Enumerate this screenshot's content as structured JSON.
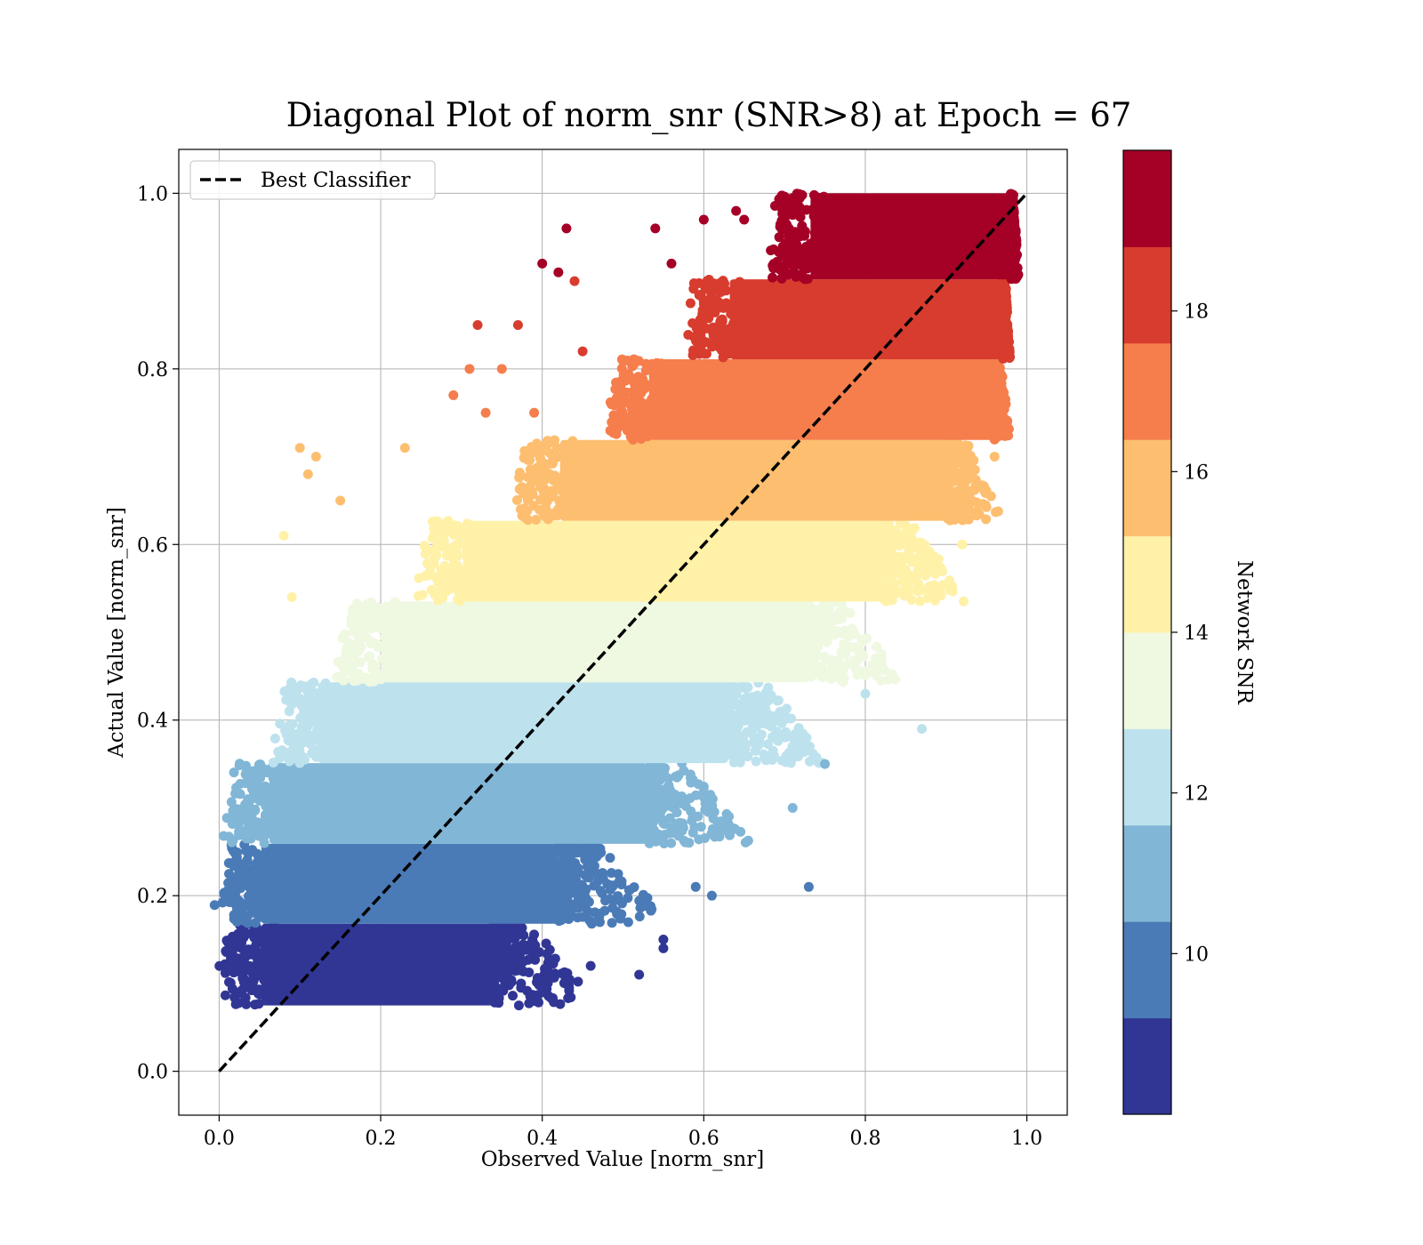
{
  "chart_data": {
    "type": "scatter",
    "title": "Diagonal Plot of norm_snr (SNR>8) at Epoch = 67",
    "xlabel": "Observed Value [norm_snr]",
    "ylabel": "Actual Value [norm_snr]",
    "xlim": [
      -0.05,
      1.05
    ],
    "ylim": [
      -0.05,
      1.05
    ],
    "xticks": [
      "0.0",
      "0.2",
      "0.4",
      "0.6",
      "0.8",
      "1.0"
    ],
    "yticks": [
      "0.0",
      "0.2",
      "0.4",
      "0.6",
      "0.8",
      "1.0"
    ],
    "grid": true,
    "legend": {
      "position": "top-left",
      "entries": [
        "Best Classifier"
      ]
    },
    "reference_line": {
      "name": "Best Classifier",
      "style": "dashed",
      "color": "#000000",
      "x": [
        0,
        1
      ],
      "y": [
        0,
        1
      ]
    },
    "colorbar": {
      "label": "Network SNR",
      "range": [
        8,
        20
      ],
      "ticks": [
        "10",
        "12",
        "14",
        "16",
        "18"
      ],
      "colors": [
        "#313695",
        "#4a7bb7",
        "#81b6d6",
        "#bde2ee",
        "#eff8e1",
        "#fff1a8",
        "#fdbe70",
        "#f57e4c",
        "#d73c2e",
        "#a50026"
      ]
    },
    "bands": [
      {
        "snr": [
          8,
          9.2
        ],
        "y": [
          0.075,
          0.168
        ],
        "x_core": [
          0.05,
          0.34
        ],
        "x_tail": 0.47
      },
      {
        "snr": [
          9.2,
          10.4
        ],
        "y": [
          0.168,
          0.259
        ],
        "x_core": [
          0.05,
          0.42
        ],
        "x_tail": 0.56
      },
      {
        "snr": [
          10.4,
          11.6
        ],
        "y": [
          0.259,
          0.351
        ],
        "x_core": [
          0.06,
          0.53
        ],
        "x_tail": 0.66
      },
      {
        "snr": [
          11.6,
          12.8
        ],
        "y": [
          0.351,
          0.443
        ],
        "x_core": [
          0.12,
          0.63
        ],
        "x_tail": 0.76
      },
      {
        "snr": [
          12.8,
          14.0
        ],
        "y": [
          0.443,
          0.535
        ],
        "x_core": [
          0.2,
          0.73
        ],
        "x_tail": 0.85
      },
      {
        "snr": [
          14.0,
          15.2
        ],
        "y": [
          0.535,
          0.627
        ],
        "x_core": [
          0.3,
          0.82
        ],
        "x_tail": 0.93
      },
      {
        "snr": [
          15.2,
          16.4
        ],
        "y": [
          0.627,
          0.719
        ],
        "x_core": [
          0.42,
          0.9
        ],
        "x_tail": 0.97
      },
      {
        "snr": [
          16.4,
          17.6
        ],
        "y": [
          0.719,
          0.811
        ],
        "x_core": [
          0.53,
          0.96
        ],
        "x_tail": 0.98
      },
      {
        "snr": [
          17.6,
          18.8
        ],
        "y": [
          0.811,
          0.902
        ],
        "x_core": [
          0.63,
          0.97
        ],
        "x_tail": 0.98
      },
      {
        "snr": [
          18.8,
          20.0
        ],
        "y": [
          0.902,
          1.0
        ],
        "x_core": [
          0.73,
          0.98
        ],
        "x_tail": 0.99
      }
    ],
    "outliers": [
      [
        0.43,
        0.96
      ],
      [
        0.54,
        0.96
      ],
      [
        0.56,
        0.92
      ],
      [
        0.4,
        0.92
      ],
      [
        0.42,
        0.91
      ],
      [
        0.44,
        0.9
      ],
      [
        0.6,
        0.97
      ],
      [
        0.64,
        0.98
      ],
      [
        0.65,
        0.97
      ],
      [
        0.37,
        0.85
      ],
      [
        0.32,
        0.85
      ],
      [
        0.45,
        0.82
      ],
      [
        0.31,
        0.8
      ],
      [
        0.35,
        0.8
      ],
      [
        0.29,
        0.77
      ],
      [
        0.33,
        0.75
      ],
      [
        0.39,
        0.75
      ],
      [
        0.1,
        0.71
      ],
      [
        0.12,
        0.7
      ],
      [
        0.11,
        0.68
      ],
      [
        0.15,
        0.65
      ],
      [
        0.23,
        0.71
      ],
      [
        0.08,
        0.61
      ],
      [
        0.09,
        0.54
      ],
      [
        0.95,
        0.74
      ],
      [
        0.96,
        0.7
      ],
      [
        0.92,
        0.6
      ],
      [
        0.8,
        0.43
      ],
      [
        0.87,
        0.39
      ],
      [
        0.75,
        0.35
      ],
      [
        0.71,
        0.3
      ],
      [
        0.73,
        0.21
      ],
      [
        0.61,
        0.2
      ],
      [
        0.59,
        0.21
      ],
      [
        0.52,
        0.11
      ],
      [
        0.55,
        0.14
      ],
      [
        0.55,
        0.15
      ],
      [
        0.46,
        0.12
      ],
      [
        0.39,
        0.08
      ],
      [
        0.4,
        0.09
      ]
    ]
  }
}
